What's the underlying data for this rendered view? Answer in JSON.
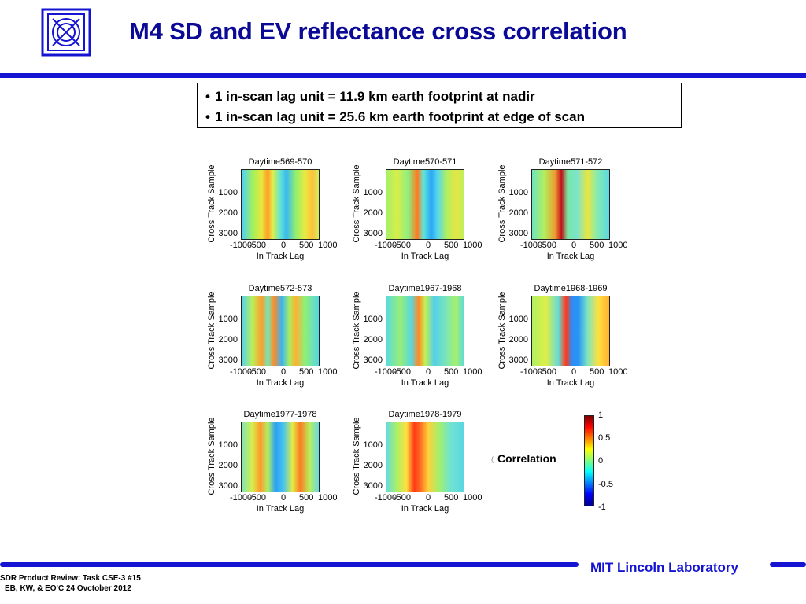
{
  "slide": {
    "title": "M4 SD and EV reflectance cross correlation",
    "bullets": [
      "1 in-scan lag unit  = 11.9 km earth footprint at nadir",
      "1 in-scan lag unit = 25.6 km earth footprint at edge of scan"
    ],
    "organization": "MIT Lincoln Laboratory",
    "footer": {
      "line1": "SDR Product Review: Task CSE-3 #15",
      "line2": "EB, KW, & EO'C  24 Ovctober 2012"
    },
    "colors": {
      "title": "#0a0a96",
      "rule": "#1414d2"
    }
  },
  "colorbar": {
    "label": "Correlation",
    "ticks": [
      "1",
      "0.5",
      "0",
      "-0.5",
      "-1"
    ],
    "mark": "("
  },
  "chart_data": [
    {
      "type": "heatmap",
      "title": "Daytime569-570",
      "xlabel": "In Track Lag",
      "ylabel": "Cross Track Sample",
      "xticks": [
        "-1000",
        "-500",
        "0",
        "500",
        "1000"
      ],
      "yticks": [
        "1000",
        "2000",
        "3000"
      ],
      "xlim": [
        -1000,
        1000
      ],
      "ylim": [
        3200,
        0
      ],
      "zlim": [
        -1,
        1
      ]
    },
    {
      "type": "heatmap",
      "title": "Daytime570-571",
      "xlabel": "In Track Lag",
      "ylabel": "Cross Track Sample",
      "xticks": [
        "-1000",
        "-500",
        "0",
        "500",
        "1000"
      ],
      "yticks": [
        "1000",
        "2000",
        "3000"
      ],
      "xlim": [
        -1000,
        1000
      ],
      "ylim": [
        3200,
        0
      ],
      "zlim": [
        -1,
        1
      ]
    },
    {
      "type": "heatmap",
      "title": "Daytime571-572",
      "xlabel": "In Track Lag",
      "ylabel": "Cross Track Sample",
      "xticks": [
        "-1000",
        "-500",
        "0",
        "500",
        "1000"
      ],
      "yticks": [
        "1000",
        "2000",
        "3000"
      ],
      "xlim": [
        -1000,
        1000
      ],
      "ylim": [
        3200,
        0
      ],
      "zlim": [
        -1,
        1
      ]
    },
    {
      "type": "heatmap",
      "title": "Daytime572-573",
      "xlabel": "In Track Lag",
      "ylabel": "Cross Track Sample",
      "xticks": [
        "-1000",
        "-500",
        "0",
        "500",
        "1000"
      ],
      "yticks": [
        "1000",
        "2000",
        "3000"
      ],
      "xlim": [
        -1000,
        1000
      ],
      "ylim": [
        3200,
        0
      ],
      "zlim": [
        -1,
        1
      ]
    },
    {
      "type": "heatmap",
      "title": "Daytime1967-1968",
      "xlabel": "In Track Lag",
      "ylabel": "Cross Track Sample",
      "xticks": [
        "-1000",
        "-500",
        "0",
        "500",
        "1000"
      ],
      "yticks": [
        "1000",
        "2000",
        "3000"
      ],
      "xlim": [
        -1000,
        1000
      ],
      "ylim": [
        3200,
        0
      ],
      "zlim": [
        -1,
        1
      ]
    },
    {
      "type": "heatmap",
      "title": "Daytime1968-1969",
      "xlabel": "In Track Lag",
      "ylabel": "Cross Track Sample",
      "xticks": [
        "-1000",
        "-500",
        "0",
        "500",
        "1000"
      ],
      "yticks": [
        "1000",
        "2000",
        "3000"
      ],
      "xlim": [
        -1000,
        1000
      ],
      "ylim": [
        3200,
        0
      ],
      "zlim": [
        -1,
        1
      ]
    },
    {
      "type": "heatmap",
      "title": "Daytime1977-1978",
      "xlabel": "In Track Lag",
      "ylabel": "Cross Track Sample",
      "xticks": [
        "-1000",
        "-500",
        "0",
        "500",
        "1000"
      ],
      "yticks": [
        "1000",
        "2000",
        "3000"
      ],
      "xlim": [
        -1000,
        1000
      ],
      "ylim": [
        3200,
        0
      ],
      "zlim": [
        -1,
        1
      ]
    },
    {
      "type": "heatmap",
      "title": "Daytime1978-1979",
      "xlabel": "In Track Lag",
      "ylabel": "Cross Track Sample",
      "xticks": [
        "-1000",
        "-500",
        "0",
        "500",
        "1000"
      ],
      "yticks": [
        "1000",
        "2000",
        "3000"
      ],
      "xlim": [
        -1000,
        1000
      ],
      "ylim": [
        3200,
        0
      ],
      "zlim": [
        -1,
        1
      ]
    }
  ]
}
